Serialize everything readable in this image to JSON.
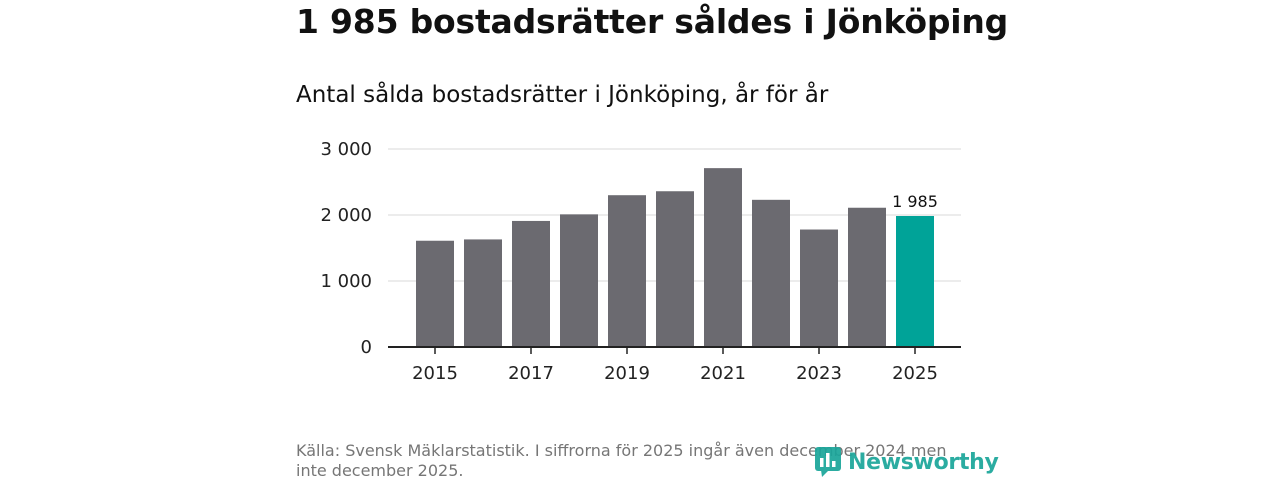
{
  "title": "1 985 bostadsrätter såldes i Jönköping",
  "subtitle": "Antal sålda bostadsrätter i Jönköping, år för år",
  "source": "Källa: Svensk Mäklarstatistik. I siffrorna för 2025 ingår även december 2024 men inte december 2025.",
  "brand": {
    "name": "Newsworthy",
    "icon": "bar-chart-bubble-icon"
  },
  "colors": {
    "bar": "#6b6a70",
    "highlight": "#00a398",
    "grid": "#d9d9d9",
    "axis": "#222222",
    "brand": "#1aa59a"
  },
  "chart_data": {
    "type": "bar",
    "categories": [
      "2015",
      "2016",
      "2017",
      "2018",
      "2019",
      "2020",
      "2021",
      "2022",
      "2023",
      "2024",
      "2025"
    ],
    "values": [
      1610,
      1630,
      1910,
      2010,
      2300,
      2360,
      2710,
      2230,
      1780,
      2110,
      1985
    ],
    "highlight_index": 10,
    "data_labels": [
      {
        "index": 10,
        "text": "1 985"
      }
    ],
    "x_tick_labels": [
      "2015",
      "2017",
      "2019",
      "2021",
      "2023",
      "2025"
    ],
    "y_ticks": [
      0,
      1000,
      2000,
      3000
    ],
    "y_tick_labels": [
      "0",
      "1 000",
      "2 000",
      "3 000"
    ],
    "ylim": [
      0,
      3000
    ],
    "grid": true,
    "legend": "none"
  }
}
